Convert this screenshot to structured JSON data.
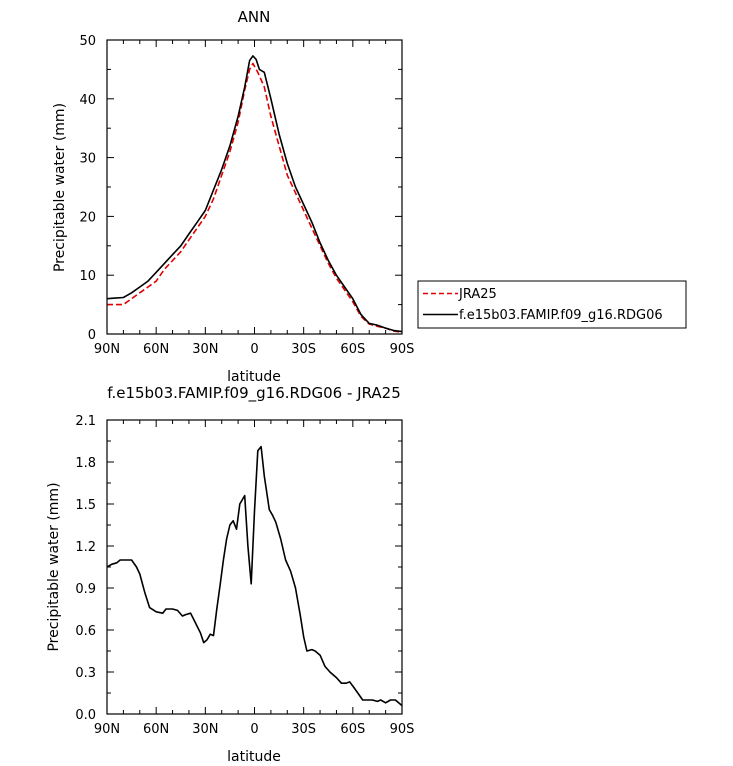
{
  "chart_data": [
    {
      "type": "line",
      "title": "ANN",
      "xlabel": "latitude",
      "ylabel": "Precipitable water (mm)",
      "xlim": [
        90,
        -90
      ],
      "ylim": [
        0,
        50
      ],
      "x_ticks": [
        90,
        60,
        30,
        0,
        -30,
        -60,
        -90
      ],
      "x_tick_labels": [
        "90N",
        "60N",
        "30N",
        "0",
        "30S",
        "60S",
        "90S"
      ],
      "y_ticks": [
        0,
        10,
        20,
        30,
        40,
        50
      ],
      "y_tick_labels": [
        "0",
        "10",
        "20",
        "30",
        "40",
        "50"
      ],
      "grid": false,
      "legend_position": "right",
      "series": [
        {
          "name": "JRA25",
          "color": "#e00000",
          "dash": "dashed",
          "points": [
            [
              90,
              5
            ],
            [
              85,
              5
            ],
            [
              80,
              5
            ],
            [
              75,
              6
            ],
            [
              70,
              7
            ],
            [
              65,
              8
            ],
            [
              60,
              9
            ],
            [
              55,
              11
            ],
            [
              50,
              12.5
            ],
            [
              45,
              14
            ],
            [
              40,
              16
            ],
            [
              35,
              18
            ],
            [
              30,
              20
            ],
            [
              25,
              23
            ],
            [
              20,
              27
            ],
            [
              15,
              31
            ],
            [
              10,
              36
            ],
            [
              6,
              41.5
            ],
            [
              3,
              45
            ],
            [
              1,
              46
            ],
            [
              -2,
              44.5
            ],
            [
              -6,
              42
            ],
            [
              -10,
              37
            ],
            [
              -15,
              32
            ],
            [
              -20,
              27
            ],
            [
              -25,
              24
            ],
            [
              -30,
              21
            ],
            [
              -35,
              18
            ],
            [
              -40,
              15
            ],
            [
              -45,
              12
            ],
            [
              -50,
              9.5
            ],
            [
              -55,
              7.5
            ],
            [
              -60,
              5.5
            ],
            [
              -65,
              3
            ],
            [
              -70,
              1.7
            ],
            [
              -75,
              1.3
            ],
            [
              -80,
              1
            ],
            [
              -85,
              0.5
            ],
            [
              -90,
              0.3
            ]
          ]
        },
        {
          "name": "f.e15b03.FAMIP.f09_g16.RDG06",
          "color": "#000000",
          "dash": "solid",
          "points": [
            [
              90,
              6
            ],
            [
              85,
              6.1
            ],
            [
              80,
              6.2
            ],
            [
              75,
              7
            ],
            [
              70,
              8
            ],
            [
              65,
              9
            ],
            [
              60,
              10.5
            ],
            [
              55,
              12
            ],
            [
              50,
              13.5
            ],
            [
              45,
              15
            ],
            [
              40,
              17
            ],
            [
              35,
              19
            ],
            [
              30,
              21
            ],
            [
              25,
              24.5
            ],
            [
              20,
              28
            ],
            [
              15,
              32
            ],
            [
              10,
              37
            ],
            [
              6,
              42
            ],
            [
              3,
              46.5
            ],
            [
              1,
              47.3
            ],
            [
              -1,
              46.7
            ],
            [
              -3,
              45
            ],
            [
              -6,
              44.5
            ],
            [
              -10,
              40
            ],
            [
              -15,
              34
            ],
            [
              -20,
              29
            ],
            [
              -25,
              25
            ],
            [
              -30,
              22
            ],
            [
              -35,
              19
            ],
            [
              -40,
              15.5
            ],
            [
              -45,
              12.5
            ],
            [
              -50,
              10
            ],
            [
              -55,
              8
            ],
            [
              -60,
              6
            ],
            [
              -65,
              3.3
            ],
            [
              -70,
              1.8
            ],
            [
              -75,
              1.5
            ],
            [
              -80,
              1
            ],
            [
              -85,
              0.6
            ],
            [
              -90,
              0.4
            ]
          ]
        }
      ]
    },
    {
      "type": "line",
      "title": "f.e15b03.FAMIP.f09_g16.RDG06 - JRA25",
      "xlabel": "latitude",
      "ylabel": "Precipitable water (mm)",
      "xlim": [
        90,
        -90
      ],
      "ylim": [
        0,
        2.1
      ],
      "x_ticks": [
        90,
        60,
        30,
        0,
        -30,
        -60,
        -90
      ],
      "x_tick_labels": [
        "90N",
        "60N",
        "30N",
        "0",
        "30S",
        "60S",
        "90S"
      ],
      "y_ticks": [
        0,
        0.3,
        0.6,
        0.9,
        1.2,
        1.5,
        1.8,
        2.1
      ],
      "y_tick_labels": [
        "0.0",
        "0.3",
        "0.6",
        "0.9",
        "1.2",
        "1.5",
        "1.8",
        "2.1"
      ],
      "grid": false,
      "series": [
        {
          "color": "#000000",
          "dash": "solid",
          "points": [
            [
              90,
              1.05
            ],
            [
              87,
              1.07
            ],
            [
              84,
              1.08
            ],
            [
              82,
              1.1
            ],
            [
              78,
              1.1
            ],
            [
              75,
              1.1
            ],
            [
              72,
              1.05
            ],
            [
              70,
              1.0
            ],
            [
              67,
              0.87
            ],
            [
              64,
              0.76
            ],
            [
              60,
              0.73
            ],
            [
              56,
              0.72
            ],
            [
              54,
              0.75
            ],
            [
              50,
              0.75
            ],
            [
              47,
              0.74
            ],
            [
              44,
              0.7
            ],
            [
              42,
              0.71
            ],
            [
              39,
              0.72
            ],
            [
              36,
              0.65
            ],
            [
              33,
              0.58
            ],
            [
              31,
              0.51
            ],
            [
              29,
              0.53
            ],
            [
              27,
              0.57
            ],
            [
              25,
              0.56
            ],
            [
              23,
              0.75
            ],
            [
              21,
              0.92
            ],
            [
              19,
              1.1
            ],
            [
              17,
              1.25
            ],
            [
              15,
              1.35
            ],
            [
              13,
              1.38
            ],
            [
              11,
              1.32
            ],
            [
              9,
              1.5
            ],
            [
              6,
              1.56
            ],
            [
              4,
              1.2
            ],
            [
              2,
              0.93
            ],
            [
              0,
              1.45
            ],
            [
              -2,
              1.88
            ],
            [
              -4,
              1.91
            ],
            [
              -6,
              1.7
            ],
            [
              -9,
              1.46
            ],
            [
              -11,
              1.42
            ],
            [
              -13,
              1.37
            ],
            [
              -16,
              1.25
            ],
            [
              -19,
              1.1
            ],
            [
              -22,
              1.02
            ],
            [
              -25,
              0.9
            ],
            [
              -28,
              0.7
            ],
            [
              -30,
              0.55
            ],
            [
              -32,
              0.45
            ],
            [
              -35,
              0.46
            ],
            [
              -37,
              0.45
            ],
            [
              -40,
              0.42
            ],
            [
              -43,
              0.34
            ],
            [
              -46,
              0.3
            ],
            [
              -50,
              0.26
            ],
            [
              -53,
              0.22
            ],
            [
              -56,
              0.22
            ],
            [
              -58,
              0.23
            ],
            [
              -60,
              0.2
            ],
            [
              -63,
              0.15
            ],
            [
              -66,
              0.1
            ],
            [
              -69,
              0.1
            ],
            [
              -72,
              0.1
            ],
            [
              -75,
              0.09
            ],
            [
              -77,
              0.1
            ],
            [
              -80,
              0.08
            ],
            [
              -83,
              0.1
            ],
            [
              -86,
              0.1
            ],
            [
              -90,
              0.06
            ]
          ]
        }
      ]
    }
  ]
}
